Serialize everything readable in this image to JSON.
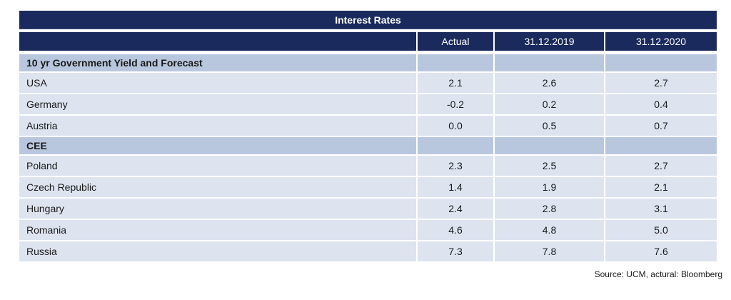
{
  "chart_data": {
    "type": "table",
    "title": "Interest Rates",
    "columns": [
      "",
      "Actual",
      "31.12.2019",
      "31.12.2020"
    ],
    "sections": [
      {
        "header": "10 yr Government Yield and Forecast",
        "rows": [
          {
            "label": "USA",
            "values": [
              "2.1",
              "2.6",
              "2.7"
            ]
          },
          {
            "label": "Germany",
            "values": [
              "-0.2",
              "0.2",
              "0.4"
            ]
          },
          {
            "label": "Austria",
            "values": [
              "0.0",
              "0.5",
              "0.7"
            ]
          }
        ]
      },
      {
        "header": "CEE",
        "rows": [
          {
            "label": "Poland",
            "values": [
              "2.3",
              "2.5",
              "2.7"
            ]
          },
          {
            "label": "Czech Republic",
            "values": [
              "1.4",
              "1.9",
              "2.1"
            ]
          },
          {
            "label": "Hungary",
            "values": [
              "2.4",
              "2.8",
              "3.1"
            ]
          },
          {
            "label": "Romania",
            "values": [
              "4.6",
              "4.8",
              "5.0"
            ]
          },
          {
            "label": "Russia",
            "values": [
              "7.3",
              "7.8",
              "7.6"
            ]
          }
        ]
      }
    ],
    "source_note": "Source: UCM, actural: Bloomberg",
    "colors": {
      "header_navy": "#1b2a5c",
      "section_bg": "#b9c7de",
      "row_bg": "#dde4f0",
      "divider": "#ffffff",
      "text": "#1a1a1a",
      "header_text": "#ffffff"
    },
    "layout": {
      "grid": "off",
      "legend": "none"
    }
  }
}
